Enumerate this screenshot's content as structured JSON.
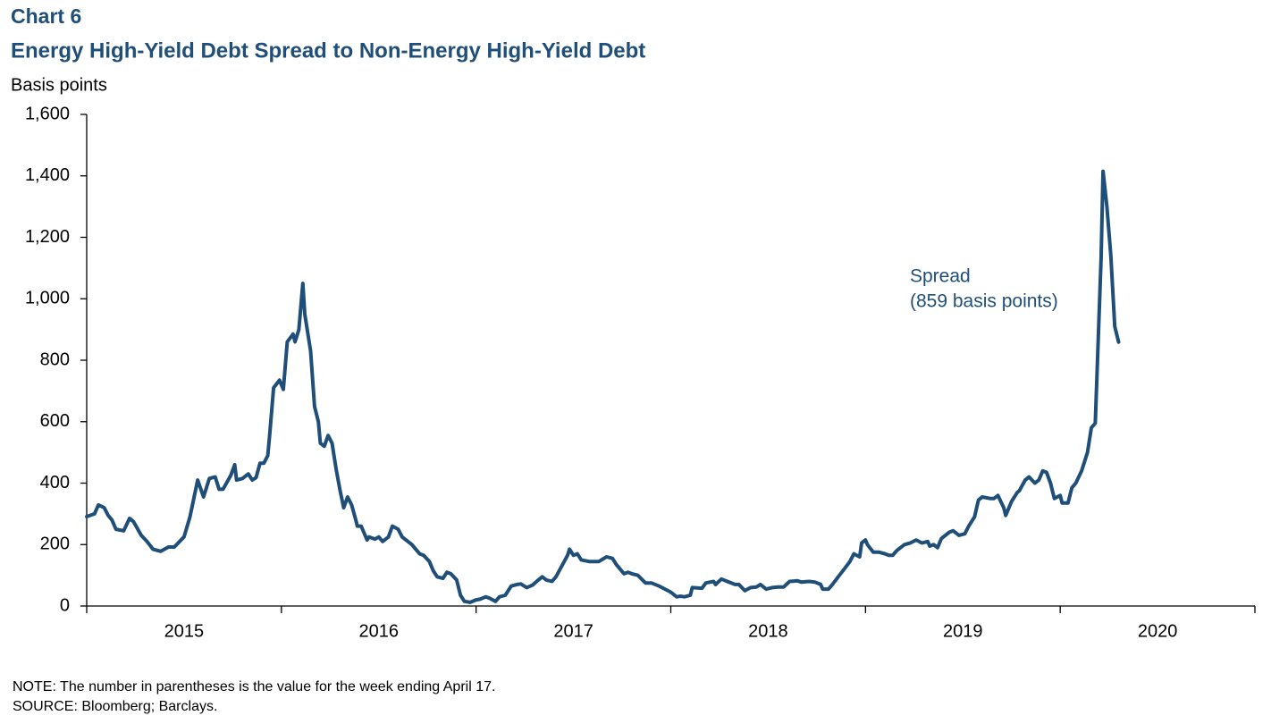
{
  "chart_data": {
    "type": "line",
    "title": "Chart 6",
    "subtitle": "Energy High-Yield Debt Spread to Non-Energy High-Yield Debt",
    "y_axis_label": "Basis points",
    "annotation": [
      "Spread",
      "(859 basis points)"
    ],
    "notes": [
      "NOTE: The number in parentheses is the value  for the week ending  April 17.",
      "SOURCE:  Bloomberg; Barclays."
    ],
    "ylim": [
      0,
      1600
    ],
    "yticks": [
      0,
      200,
      400,
      600,
      800,
      {
        "value": 1000,
        "label": "1,000"
      },
      {
        "value": 1200,
        "label": "1,200"
      },
      {
        "value": 1400,
        "label": "1,400"
      },
      {
        "value": 1600,
        "label": "1,600"
      }
    ],
    "xlim": [
      2015,
      2021
    ],
    "xticks": [
      2015,
      2016,
      2017,
      2018,
      2019,
      2020,
      2021
    ],
    "xtick_labels": [
      {
        "value": 2015.5,
        "label": "2015"
      },
      {
        "value": 2016.5,
        "label": "2016"
      },
      {
        "value": 2017.5,
        "label": "2017"
      },
      {
        "value": 2018.5,
        "label": "2018"
      },
      {
        "value": 2019.5,
        "label": "2019"
      },
      {
        "value": 2020.5,
        "label": "2020"
      }
    ],
    "x": [
      2015.0,
      2015.04,
      2015.06,
      2015.09,
      2015.11,
      2015.13,
      2015.15,
      2015.19,
      2015.22,
      2015.24,
      2015.28,
      2015.31,
      2015.34,
      2015.38,
      2015.42,
      2015.45,
      2015.5,
      2015.53,
      2015.56,
      2015.57,
      2015.6,
      2015.63,
      2015.66,
      2015.68,
      2015.7,
      2015.74,
      2015.76,
      2015.77,
      2015.8,
      2015.83,
      2015.85,
      2015.87,
      2015.89,
      2015.91,
      2015.93,
      2015.94,
      2015.96,
      2015.99,
      2016.01,
      2016.03,
      2016.06,
      2016.07,
      2016.09,
      2016.11,
      2016.12,
      2016.15,
      2016.17,
      2016.19,
      2016.2,
      2016.22,
      2016.24,
      2016.26,
      2016.28,
      2016.3,
      2016.32,
      2016.34,
      2016.36,
      2016.38,
      2016.39,
      2016.41,
      2016.44,
      2016.45,
      2016.48,
      2016.5,
      2016.52,
      2016.55,
      2016.57,
      2016.6,
      2016.62,
      2016.67,
      2016.71,
      2016.73,
      2016.76,
      2016.78,
      2016.8,
      2016.83,
      2016.85,
      2016.87,
      2016.9,
      2016.92,
      2016.94,
      2016.97,
      2017.0,
      2017.02,
      2017.05,
      2017.07,
      2017.1,
      2017.12,
      2017.15,
      2017.18,
      2017.21,
      2017.23,
      2017.26,
      2017.29,
      2017.32,
      2017.34,
      2017.36,
      2017.39,
      2017.41,
      2017.44,
      2017.47,
      2017.48,
      2017.5,
      2017.52,
      2017.54,
      2017.58,
      2017.63,
      2017.67,
      2017.7,
      2017.72,
      2017.76,
      2017.78,
      2017.8,
      2017.83,
      2017.87,
      2017.9,
      2017.94,
      2017.97,
      2018.0,
      2018.03,
      2018.05,
      2018.07,
      2018.1,
      2018.11,
      2018.16,
      2018.18,
      2018.22,
      2018.23,
      2018.26,
      2018.29,
      2018.33,
      2018.35,
      2018.38,
      2018.41,
      2018.44,
      2018.46,
      2018.49,
      2018.52,
      2018.55,
      2018.58,
      2018.61,
      2018.65,
      2018.67,
      2018.71,
      2018.74,
      2018.77,
      2018.78,
      2018.81,
      2018.83,
      2018.86,
      2018.89,
      2018.92,
      2018.94,
      2018.97,
      2018.98,
      2019.0,
      2019.01,
      2019.04,
      2019.07,
      2019.1,
      2019.12,
      2019.14,
      2019.16,
      2019.2,
      2019.23,
      2019.26,
      2019.29,
      2019.32,
      2019.33,
      2019.35,
      2019.37,
      2019.39,
      2019.43,
      2019.45,
      2019.48,
      2019.51,
      2019.53,
      2019.56,
      2019.58,
      2019.6,
      2019.64,
      2019.66,
      2019.68,
      2019.71,
      2019.72,
      2019.75,
      2019.78,
      2019.79,
      2019.82,
      2019.84,
      2019.87,
      2019.89,
      2019.91,
      2019.93,
      2019.95,
      2019.97,
      2020.0,
      2020.01,
      2020.04,
      2020.06,
      2020.08,
      2020.11,
      2020.13,
      2020.14,
      2020.16,
      2020.18,
      2020.21,
      2020.22,
      2020.24,
      2020.26,
      2020.28,
      2020.3
    ],
    "series": [
      {
        "name": "Spread",
        "color": "#1f4e79",
        "values": [
          291,
          300,
          329,
          320,
          295,
          280,
          250,
          245,
          285,
          275,
          230,
          210,
          185,
          178,
          192,
          192,
          225,
          290,
          380,
          410,
          355,
          415,
          420,
          380,
          380,
          425,
          460,
          410,
          415,
          430,
          410,
          418,
          465,
          465,
          490,
          560,
          710,
          735,
          705,
          860,
          885,
          860,
          900,
          1050,
          950,
          830,
          650,
          600,
          530,
          520,
          555,
          530,
          450,
          380,
          320,
          355,
          330,
          285,
          260,
          260,
          215,
          225,
          218,
          225,
          210,
          225,
          260,
          250,
          225,
          200,
          170,
          165,
          145,
          115,
          95,
          90,
          110,
          105,
          85,
          35,
          15,
          12,
          20,
          22,
          30,
          25,
          15,
          30,
          35,
          65,
          70,
          72,
          60,
          68,
          85,
          95,
          85,
          80,
          95,
          130,
          165,
          185,
          165,
          170,
          150,
          145,
          145,
          160,
          155,
          135,
          105,
          110,
          105,
          100,
          75,
          75,
          65,
          55,
          45,
          30,
          32,
          30,
          35,
          60,
          58,
          75,
          80,
          70,
          88,
          80,
          70,
          70,
          50,
          60,
          62,
          70,
          55,
          60,
          62,
          62,
          80,
          82,
          78,
          80,
          78,
          70,
          55,
          55,
          70,
          95,
          120,
          145,
          170,
          160,
          205,
          215,
          200,
          175,
          175,
          170,
          165,
          165,
          180,
          200,
          205,
          215,
          205,
          210,
          195,
          200,
          190,
          220,
          240,
          245,
          230,
          235,
          260,
          290,
          345,
          355,
          350,
          350,
          360,
          320,
          295,
          340,
          370,
          375,
          410,
          420,
          400,
          410,
          440,
          435,
          400,
          350,
          360,
          335,
          335,
          385,
          400,
          440,
          480,
          500,
          580,
          595,
          1130,
          1415,
          1300,
          1140,
          910,
          859
        ]
      }
    ]
  }
}
